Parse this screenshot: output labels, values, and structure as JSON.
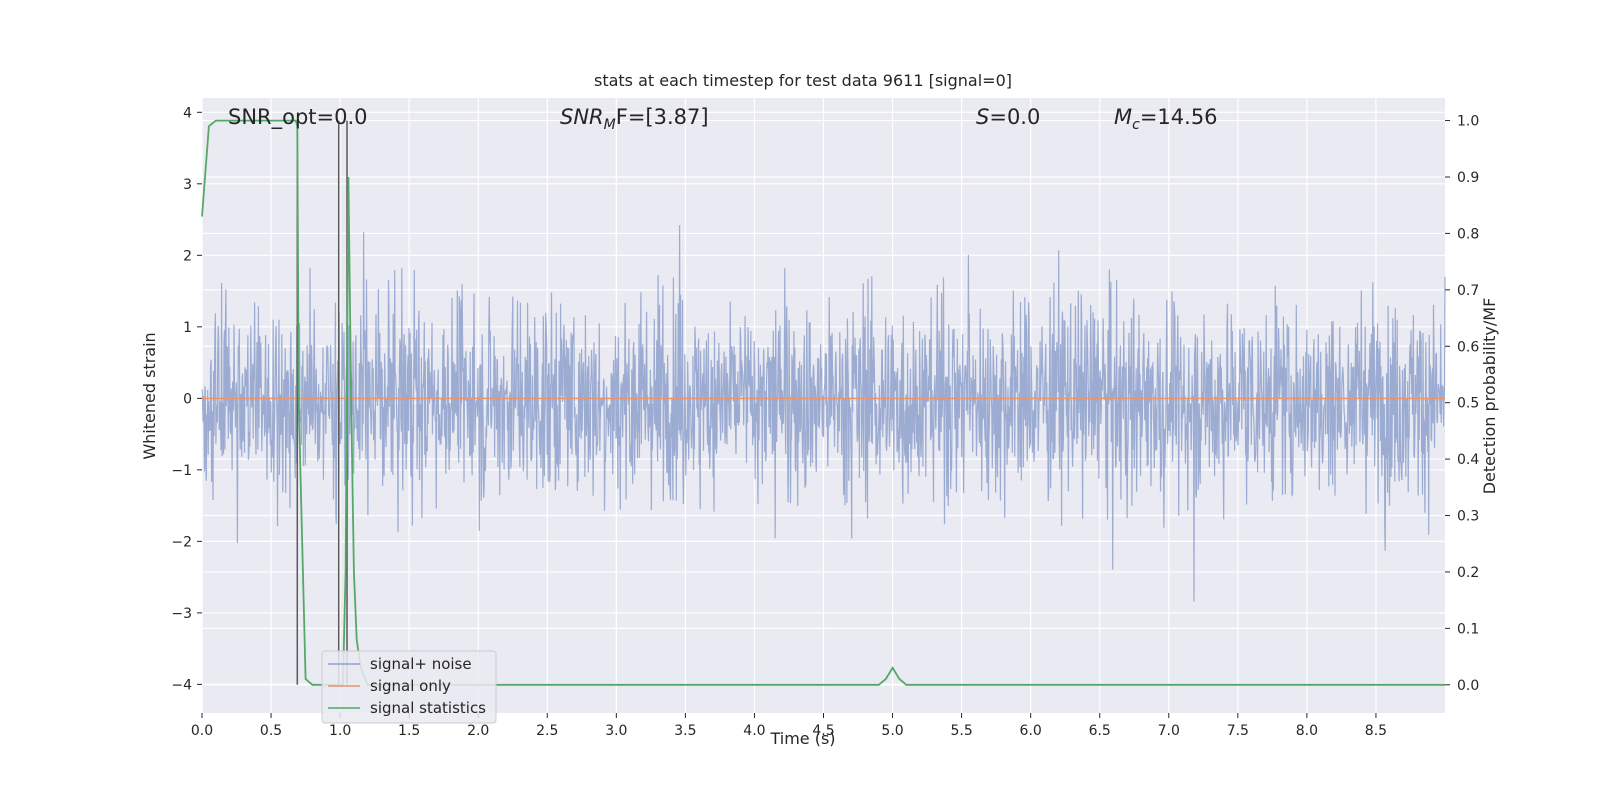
{
  "colors": {
    "background": "#eaeaf2",
    "grid": "#ffffff",
    "noise_series": "#8da0cb",
    "signal_only_series": "#e8956e",
    "statistics_series": "#55a868",
    "vline": "#5a5a5a",
    "text": "#262626"
  },
  "chart_data": {
    "type": "line",
    "title": "stats at each timestep for test data 9611 [signal=0]",
    "xlabel": "Time (s)",
    "ylabel_left": "Whitened strain",
    "ylabel_right": "Detection probability/MF",
    "xlim": [
      0.0,
      9.0
    ],
    "ylim_left": [
      -4.4,
      4.2
    ],
    "ylim_right": [
      -0.05,
      1.04
    ],
    "x_ticks": [
      0.0,
      0.5,
      1.0,
      1.5,
      2.0,
      2.5,
      3.0,
      3.5,
      4.0,
      4.5,
      5.0,
      5.5,
      6.0,
      6.5,
      7.0,
      7.5,
      8.0,
      8.5
    ],
    "x_tick_labels": [
      "0.0",
      "0.5",
      "1.0",
      "1.5",
      "2.0",
      "2.5",
      "3.0",
      "3.5",
      "4.0",
      "4.5",
      "5.0",
      "5.5",
      "6.0",
      "6.5",
      "7.0",
      "7.5",
      "8.0",
      "8.5"
    ],
    "y_ticks_left": [
      -4,
      -3,
      -2,
      -1,
      0,
      1,
      2,
      3,
      4
    ],
    "y_tick_labels_left": [
      "−4",
      "−3",
      "−2",
      "−1",
      "0",
      "1",
      "2",
      "3",
      "4"
    ],
    "y_ticks_right": [
      0.0,
      0.1,
      0.2,
      0.3,
      0.4,
      0.5,
      0.6,
      0.7,
      0.8,
      0.9,
      1.0
    ],
    "y_tick_labels_right": [
      "0.0",
      "0.1",
      "0.2",
      "0.3",
      "0.4",
      "0.5",
      "0.6",
      "0.7",
      "0.8",
      "0.9",
      "1.0"
    ],
    "grid": true,
    "legend_position": "lower-left",
    "annotations": {
      "snr_opt": "SNR_opt=0.0",
      "snr_mf_base": "SNR",
      "snr_mf_sub": "M",
      "snr_mf_tail": "F=[3.87]",
      "s_var": "S",
      "s_tail": "=0.0",
      "mc_base": "M",
      "mc_sub": "c",
      "mc_tail": "=14.56"
    },
    "series": [
      {
        "name": "signal+ noise",
        "axis": "left",
        "style": "dense-noise",
        "x_range": [
          0.0,
          9.0
        ],
        "envelope_typical": [
          -1.6,
          2.0
        ],
        "extreme_range": [
          -4.0,
          3.75
        ]
      },
      {
        "name": "signal only",
        "axis": "left",
        "x": [
          0.0,
          9.0
        ],
        "y": [
          0.0,
          0.0
        ]
      },
      {
        "name": "signal statistics",
        "axis": "right",
        "x": [
          0.0,
          0.05,
          0.1,
          0.2,
          0.3,
          0.5,
          0.6,
          0.68,
          0.69,
          0.7,
          0.75,
          0.8,
          0.9,
          1.0,
          1.02,
          1.04,
          1.06,
          1.08,
          1.1,
          1.12,
          1.15,
          1.2,
          1.3,
          2.0,
          3.0,
          4.0,
          4.5,
          4.9,
          4.95,
          5.0,
          5.05,
          5.1,
          5.2,
          6.0,
          7.0,
          8.0,
          9.0
        ],
        "y": [
          0.83,
          0.99,
          1.0,
          1.0,
          1.0,
          1.0,
          1.0,
          1.0,
          0.99,
          0.5,
          0.01,
          0.0,
          0.0,
          0.0,
          0.0,
          0.2,
          0.9,
          0.5,
          0.2,
          0.08,
          0.03,
          0.0,
          0.0,
          0.0,
          0.0,
          0.0,
          0.0,
          0.0,
          0.01,
          0.03,
          0.01,
          0.0,
          0.0,
          0.0,
          0.0,
          0.0,
          0.0
        ]
      }
    ],
    "vertical_lines_x": [
      0.69,
      0.99,
      1.05
    ]
  }
}
